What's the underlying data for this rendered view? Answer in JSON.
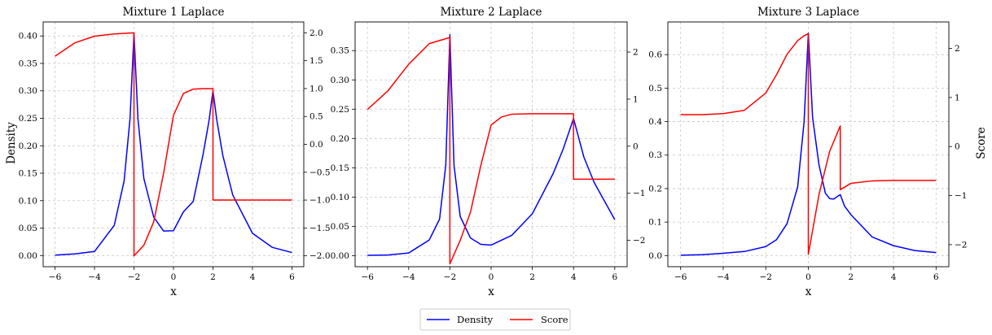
{
  "figure": {
    "ylabel_left": "Density",
    "ylabel_right": "Score",
    "legend": {
      "placement": "bottom-center",
      "entries": [
        {
          "label": "Density",
          "color": "#0000ff"
        },
        {
          "label": "Score",
          "color": "#ff0000"
        }
      ]
    }
  },
  "chart_data": [
    {
      "type": "line",
      "title": "Mixture 1 Laplace",
      "xlabel": "x",
      "xlim": [
        -6.6,
        6.6
      ],
      "xticks": [
        -6,
        -4,
        -2,
        0,
        2,
        4,
        6
      ],
      "xtick_labels": [
        "−6",
        "−4",
        "−2",
        "0",
        "2",
        "4",
        "6"
      ],
      "ylim_density": [
        -0.0203,
        0.4255
      ],
      "yticks_density": [
        0.0,
        0.05,
        0.1,
        0.15,
        0.2,
        0.25,
        0.3,
        0.35,
        0.4
      ],
      "ytick_labels_density": [
        "0.00",
        "0.05",
        "0.10",
        "0.15",
        "0.20",
        "0.25",
        "0.30",
        "0.35",
        "0.40"
      ],
      "ylim_score": [
        -2.195,
        2.195
      ],
      "yticks_score": [
        -2.0,
        -1.5,
        -1.0,
        -0.5,
        0.0,
        0.5,
        1.0,
        1.5,
        2.0
      ],
      "ytick_labels_score": [
        "−2.0",
        "−1.5",
        "−1.0",
        "−0.5",
        "0.0",
        "0.5",
        "1.0",
        "1.5",
        "2.0"
      ],
      "grid": true,
      "series": [
        {
          "name": "Density",
          "axis": "left",
          "color": "#0000ff",
          "x": [
            -6,
            -5,
            -4,
            -3,
            -2.5,
            -2.2,
            -2,
            -1.8,
            -1.5,
            -1,
            -0.5,
            0,
            0.5,
            1,
            1.5,
            1.8,
            2,
            2.2,
            2.5,
            3,
            4,
            5,
            6
          ],
          "y": [
            0.0008,
            0.0031,
            0.0074,
            0.0549,
            0.1359,
            0.2497,
            0.405,
            0.2495,
            0.1403,
            0.07,
            0.0446,
            0.0452,
            0.0795,
            0.0985,
            0.1843,
            0.2455,
            0.3,
            0.2455,
            0.1822,
            0.1105,
            0.0406,
            0.015,
            0.0055
          ]
        },
        {
          "name": "Score",
          "axis": "right",
          "color": "#ff0000",
          "x": [
            -6,
            -5,
            -4,
            -3,
            -2.001,
            -2,
            -1.5,
            -1,
            -0.5,
            0,
            0.5,
            1,
            1.5,
            2,
            2.001,
            3,
            4,
            5,
            6
          ],
          "y": [
            1.58,
            1.82,
            1.94,
            1.98,
            2.0,
            -2.0,
            -1.81,
            -1.39,
            -0.52,
            0.52,
            0.91,
            0.99,
            1.0,
            1.0,
            -1.0,
            -1.0,
            -1.0,
            -1.0,
            -1.0
          ]
        }
      ]
    },
    {
      "type": "line",
      "title": "Mixture 2 Laplace",
      "xlabel": "x",
      "xlim": [
        -6.6,
        6.6
      ],
      "xticks": [
        -6,
        -4,
        -2,
        0,
        2,
        4,
        6
      ],
      "xtick_labels": [
        "−6",
        "−4",
        "−2",
        "0",
        "2",
        "4",
        "6"
      ],
      "ylim_density": [
        -0.0189,
        0.3989
      ],
      "yticks_density": [
        0.0,
        0.05,
        0.1,
        0.15,
        0.2,
        0.25,
        0.3,
        0.35
      ],
      "ytick_labels_density": [
        "0.00",
        "0.05",
        "0.10",
        "0.15",
        "0.20",
        "0.25",
        "0.30",
        "0.35"
      ],
      "ylim_score": [
        -2.56,
        2.64
      ],
      "yticks_score": [
        -2,
        -1,
        0,
        1,
        2
      ],
      "ytick_labels_score": [
        "−2",
        "−1",
        "0",
        "1",
        "2"
      ],
      "grid": true,
      "series": [
        {
          "name": "Density",
          "axis": "left",
          "color": "#0000ff",
          "x": [
            -6,
            -5,
            -4,
            -3,
            -2.5,
            -2.2,
            -2,
            -1.8,
            -1.5,
            -1,
            -0.5,
            0,
            1,
            2,
            3,
            3.5,
            4,
            4.5,
            5,
            6
          ],
          "y": [
            0.0005,
            0.0011,
            0.0045,
            0.0268,
            0.0625,
            0.1543,
            0.377,
            0.1543,
            0.0668,
            0.03,
            0.0193,
            0.018,
            0.0346,
            0.0715,
            0.1393,
            0.1822,
            0.234,
            0.1683,
            0.1249,
            0.0615
          ]
        },
        {
          "name": "Score",
          "axis": "right",
          "color": "#ff0000",
          "x": [
            -6,
            -5,
            -4,
            -3,
            -2.001,
            -2,
            -1.5,
            -1,
            -0.5,
            0,
            0.5,
            1,
            2,
            3,
            3.999,
            4,
            5,
            6
          ],
          "y": [
            0.78,
            1.18,
            1.74,
            2.18,
            2.31,
            -2.5,
            -2.0,
            -1.4,
            -0.41,
            0.45,
            0.62,
            0.68,
            0.69,
            0.69,
            0.69,
            -0.7,
            -0.7,
            -0.7
          ]
        }
      ]
    },
    {
      "type": "line",
      "title": "Mixture 3 Laplace",
      "xlabel": "x",
      "xlim": [
        -6.6,
        6.6
      ],
      "xticks": [
        -6,
        -4,
        -2,
        0,
        2,
        4,
        6
      ],
      "xtick_labels": [
        "−6",
        "−4",
        "−2",
        "0",
        "2",
        "4",
        "6"
      ],
      "ylim_density": [
        -0.0332,
        0.6975
      ],
      "yticks_density": [
        0.0,
        0.1,
        0.2,
        0.3,
        0.4,
        0.5,
        0.6
      ],
      "ytick_labels_density": [
        "0.0",
        "0.1",
        "0.2",
        "0.3",
        "0.4",
        "0.5",
        "0.6"
      ],
      "ylim_score": [
        -2.45,
        2.54
      ],
      "yticks_score": [
        -2,
        -1,
        0,
        1,
        2
      ],
      "ytick_labels_score": [
        "−2",
        "−1",
        "0",
        "1",
        "2"
      ],
      "ylabel_right": "Score",
      "grid": true,
      "series": [
        {
          "name": "Density",
          "axis": "left",
          "color": "#0000ff",
          "x": [
            -6,
            -5,
            -4,
            -3,
            -2,
            -1.5,
            -1,
            -0.5,
            -0.2,
            0,
            0.2,
            0.5,
            0.8,
            1,
            1.2,
            1.4,
            1.5,
            1.7,
            2,
            3,
            4,
            5,
            6
          ],
          "y": [
            0.0012,
            0.0027,
            0.0068,
            0.0122,
            0.0268,
            0.0471,
            0.0954,
            0.2053,
            0.3993,
            0.664,
            0.4123,
            0.2711,
            0.1864,
            0.1702,
            0.1688,
            0.1782,
            0.182,
            0.1478,
            0.1222,
            0.0555,
            0.0296,
            0.0151,
            0.0089
          ]
        },
        {
          "name": "Score",
          "axis": "right",
          "color": "#ff0000",
          "x": [
            -6,
            -5,
            -4,
            -3,
            -2,
            -1.5,
            -1,
            -0.5,
            -0.2,
            -0.001,
            0,
            0.5,
            1,
            1.5,
            1.501,
            2,
            3,
            4,
            5,
            6
          ],
          "y": [
            0.65,
            0.65,
            0.67,
            0.74,
            1.09,
            1.46,
            1.88,
            2.16,
            2.26,
            2.3,
            -2.2,
            -0.98,
            -0.1,
            0.42,
            -0.88,
            -0.75,
            -0.7,
            -0.69,
            -0.69,
            -0.69
          ]
        }
      ]
    }
  ]
}
